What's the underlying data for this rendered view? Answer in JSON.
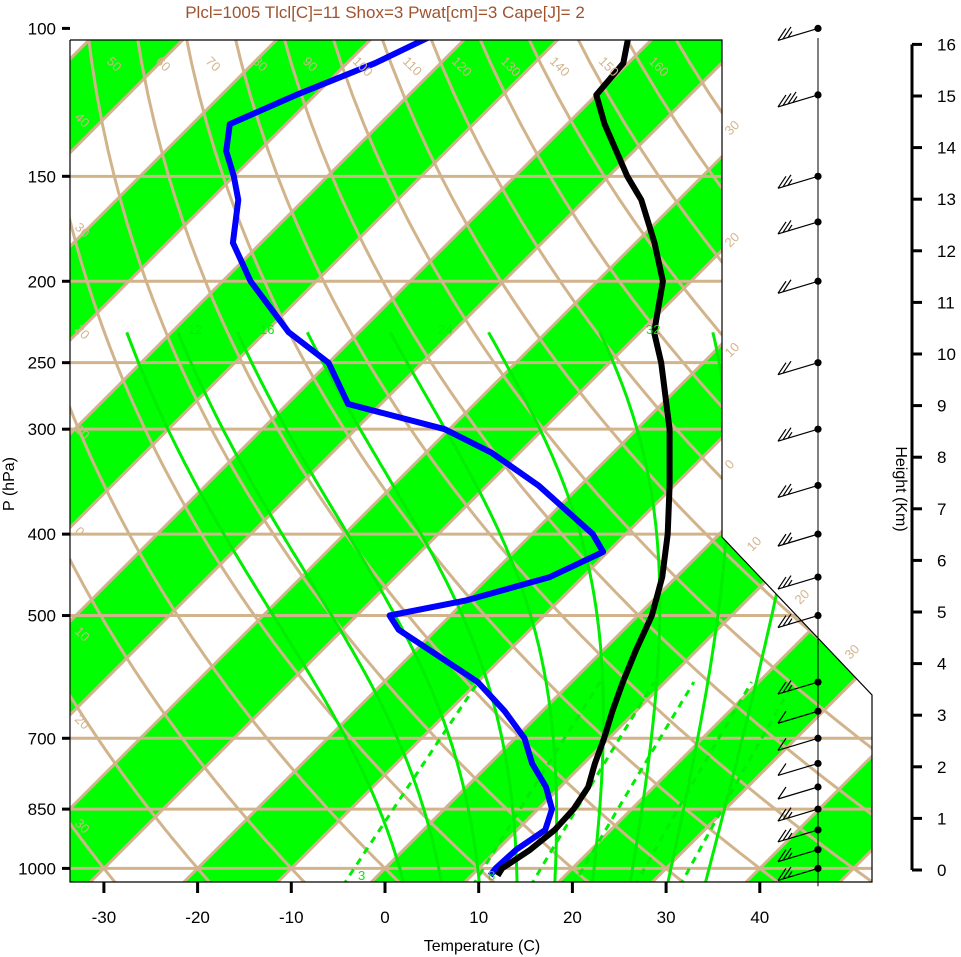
{
  "colors": {
    "stripe": "#00ff00",
    "isotherm": "#d2b48c",
    "mixing_ratio": "#00ee00",
    "dewpoint": "#0000ff",
    "temperature": "#000000",
    "title": "#a0522d"
  },
  "chart_data": {
    "type": "skew-t",
    "title": "Plcl=1005 Tlcl[C]=11 Shox=3 Pwat[cm]=3 Cape[J]= 2",
    "xlabel": "Temperature (C)",
    "ylabel": "P (hPa)",
    "y2label": "Height (Km)",
    "xlim": [
      -34,
      36
    ],
    "ylim": [
      1050,
      100
    ],
    "x_ticks": [
      "-30",
      "-20",
      "-10",
      "0",
      "10",
      "20",
      "30",
      "40"
    ],
    "x_tick_values": [
      -30,
      -20,
      -10,
      0,
      10,
      20,
      30,
      40
    ],
    "pressure_ticks": [
      "100",
      "150",
      "200",
      "250",
      "300",
      "400",
      "500",
      "700",
      "850",
      "1000"
    ],
    "pressure_values": [
      100,
      150,
      200,
      250,
      300,
      400,
      500,
      700,
      850,
      1000
    ],
    "height_ticks": [
      "0",
      "1",
      "2",
      "3",
      "4",
      "5",
      "6",
      "7",
      "8",
      "9",
      "10",
      "11",
      "12",
      "13",
      "14",
      "15",
      "16"
    ],
    "height_values": [
      0,
      1,
      2,
      3,
      4,
      5,
      6,
      7,
      8,
      9,
      10,
      11,
      12,
      13,
      14,
      15,
      16
    ],
    "isotherm_labels_top": [
      "50",
      "60",
      "70",
      "80",
      "90",
      "100",
      "110",
      "120",
      "130",
      "140",
      "150",
      "160"
    ],
    "isotherm_labels_right": [
      "30",
      "20",
      "10",
      "0",
      "10",
      "20",
      "30"
    ],
    "isotherm_labels_left": [
      "40",
      "30",
      "20",
      "10",
      "0",
      "10",
      "20",
      "30"
    ],
    "mixing_ratio_labels": [
      "12",
      "16",
      "24",
      "32",
      "3",
      "8"
    ],
    "temperature_profile": [
      {
        "p": 1020,
        "t": 12.8
      },
      {
        "p": 1000,
        "t": 12.5
      },
      {
        "p": 950,
        "t": 13.5
      },
      {
        "p": 900,
        "t": 14.0
      },
      {
        "p": 850,
        "t": 13.8
      },
      {
        "p": 800,
        "t": 13.0
      },
      {
        "p": 750,
        "t": 11.2
      },
      {
        "p": 700,
        "t": 9.5
      },
      {
        "p": 650,
        "t": 7.5
      },
      {
        "p": 600,
        "t": 5.5
      },
      {
        "p": 550,
        "t": 3.5
      },
      {
        "p": 500,
        "t": 1.5
      },
      {
        "p": 450,
        "t": -1.5
      },
      {
        "p": 400,
        "t": -5.5
      },
      {
        "p": 350,
        "t": -10.5
      },
      {
        "p": 300,
        "t": -16.5
      },
      {
        "p": 250,
        "t": -24.5
      },
      {
        "p": 230,
        "t": -28.5
      },
      {
        "p": 200,
        "t": -33.0
      },
      {
        "p": 180,
        "t": -38.0
      },
      {
        "p": 160,
        "t": -44.0
      },
      {
        "p": 150,
        "t": -48.0
      },
      {
        "p": 130,
        "t": -56.0
      },
      {
        "p": 120,
        "t": -60.0
      },
      {
        "p": 110,
        "t": -60.5
      },
      {
        "p": 100,
        "t": -63.5
      }
    ],
    "dewpoint_profile": [
      {
        "p": 1020,
        "t": 12.0
      },
      {
        "p": 1000,
        "t": 11.8
      },
      {
        "p": 950,
        "t": 12.0
      },
      {
        "p": 900,
        "t": 13.0
      },
      {
        "p": 850,
        "t": 11.5
      },
      {
        "p": 800,
        "t": 8.5
      },
      {
        "p": 750,
        "t": 4.5
      },
      {
        "p": 700,
        "t": 1.0
      },
      {
        "p": 650,
        "t": -4.0
      },
      {
        "p": 600,
        "t": -10.0
      },
      {
        "p": 550,
        "t": -18.5
      },
      {
        "p": 520,
        "t": -24.0
      },
      {
        "p": 500,
        "t": -26.5
      },
      {
        "p": 480,
        "t": -20.0
      },
      {
        "p": 450,
        "t": -13.5
      },
      {
        "p": 420,
        "t": -10.5
      },
      {
        "p": 400,
        "t": -13.5
      },
      {
        "p": 350,
        "t": -24.5
      },
      {
        "p": 320,
        "t": -33.0
      },
      {
        "p": 300,
        "t": -40.5
      },
      {
        "p": 280,
        "t": -53.5
      },
      {
        "p": 250,
        "t": -60.0
      },
      {
        "p": 230,
        "t": -67.5
      },
      {
        "p": 200,
        "t": -77.0
      },
      {
        "p": 180,
        "t": -83.0
      },
      {
        "p": 160,
        "t": -87.0
      },
      {
        "p": 150,
        "t": -90.0
      },
      {
        "p": 140,
        "t": -93.5
      },
      {
        "p": 130,
        "t": -96.0
      },
      {
        "p": 120,
        "t": -92.0
      },
      {
        "p": 110,
        "t": -87.0
      },
      {
        "p": 100,
        "t": -83.0
      }
    ],
    "wind_barbs": [
      {
        "p": 1000,
        "dir": 260,
        "spd": 15
      },
      {
        "p": 950,
        "dir": 260,
        "spd": 15
      },
      {
        "p": 900,
        "dir": 260,
        "spd": 15
      },
      {
        "p": 850,
        "dir": 255,
        "spd": 15
      },
      {
        "p": 800,
        "dir": 250,
        "spd": 10
      },
      {
        "p": 750,
        "dir": 245,
        "spd": 10
      },
      {
        "p": 700,
        "dir": 245,
        "spd": 10
      },
      {
        "p": 650,
        "dir": 245,
        "spd": 10
      },
      {
        "p": 600,
        "dir": 240,
        "spd": 15
      },
      {
        "p": 500,
        "dir": 240,
        "spd": 15
      },
      {
        "p": 450,
        "dir": 240,
        "spd": 15
      },
      {
        "p": 400,
        "dir": 245,
        "spd": 15
      },
      {
        "p": 350,
        "dir": 250,
        "spd": 15
      },
      {
        "p": 300,
        "dir": 250,
        "spd": 15
      },
      {
        "p": 250,
        "dir": 255,
        "spd": 20
      },
      {
        "p": 200,
        "dir": 255,
        "spd": 20
      },
      {
        "p": 170,
        "dir": 255,
        "spd": 15
      },
      {
        "p": 150,
        "dir": 250,
        "spd": 15
      },
      {
        "p": 120,
        "dir": 255,
        "spd": 25
      },
      {
        "p": 100,
        "dir": 250,
        "spd": 15
      }
    ],
    "grid": true
  }
}
